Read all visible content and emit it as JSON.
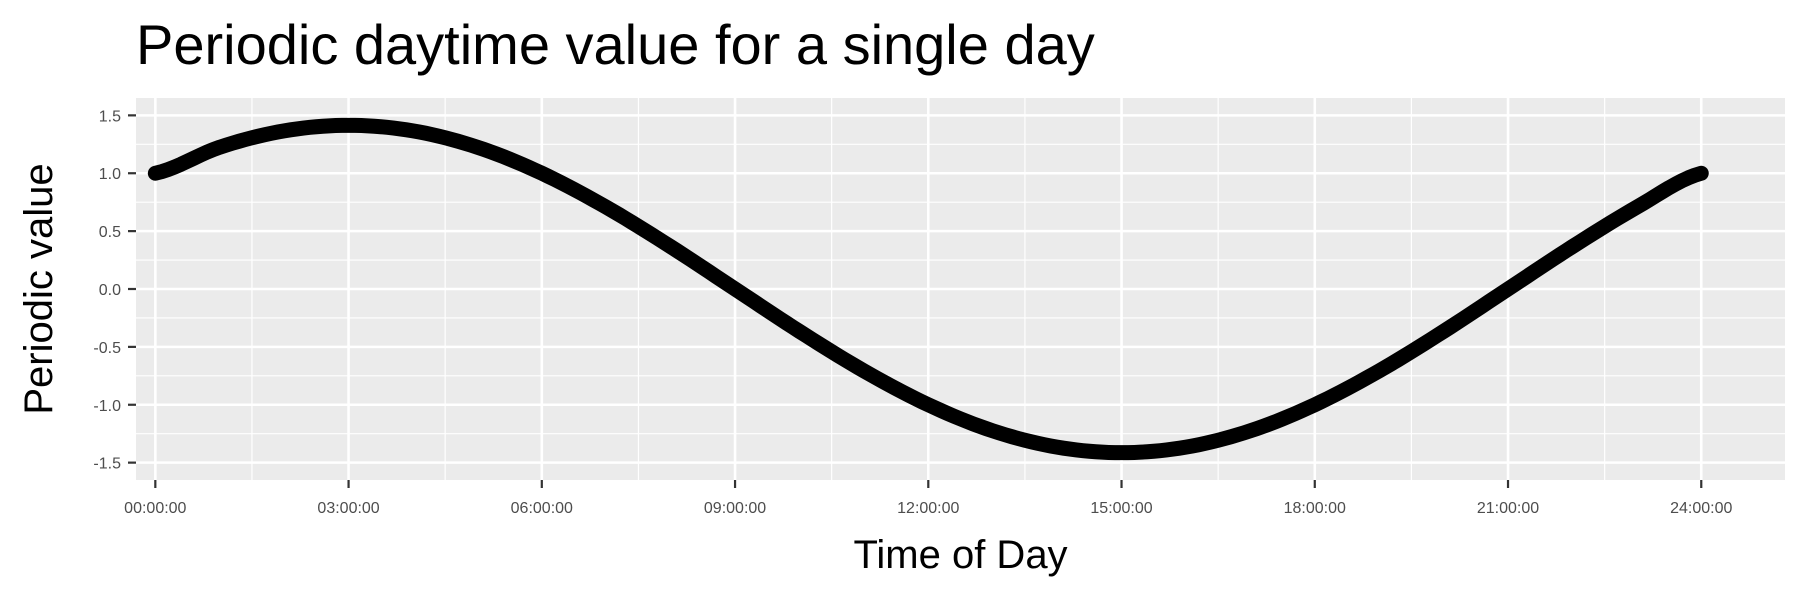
{
  "chart_data": {
    "type": "line",
    "title": "Periodic daytime value for a single day",
    "xlabel": "Time of Day",
    "ylabel": "Periodic value",
    "x_unit": "hours",
    "xlim": [
      -0.3,
      25.3
    ],
    "ylim": [
      -1.5,
      1.5
    ],
    "grid": true,
    "x_ticks": [
      {
        "value": 0,
        "label": "00:00:00"
      },
      {
        "value": 3,
        "label": "03:00:00"
      },
      {
        "value": 6,
        "label": "06:00:00"
      },
      {
        "value": 9,
        "label": "09:00:00"
      },
      {
        "value": 12,
        "label": "12:00:00"
      },
      {
        "value": 15,
        "label": "15:00:00"
      },
      {
        "value": 18,
        "label": "18:00:00"
      },
      {
        "value": 21,
        "label": "21:00:00"
      },
      {
        "value": 24,
        "label": "24:00:00"
      }
    ],
    "y_ticks": [
      {
        "value": 1.5,
        "label": "1.5"
      },
      {
        "value": 1.0,
        "label": "1.0"
      },
      {
        "value": 0.5,
        "label": "0.5"
      },
      {
        "value": 0.0,
        "label": "0.0"
      },
      {
        "value": -0.5,
        "label": "-0.5"
      },
      {
        "value": -1.0,
        "label": "-1.0"
      },
      {
        "value": -1.5,
        "label": "-1.5"
      }
    ],
    "series": [
      {
        "color": "#000000",
        "x": [
          0,
          1,
          2,
          3,
          4,
          5,
          6,
          7,
          8,
          9,
          10,
          11,
          12,
          13,
          14,
          15,
          16,
          17,
          18,
          19,
          20,
          21,
          22,
          23,
          24
        ],
        "y": [
          1.0,
          1.225,
          1.366,
          1.414,
          1.366,
          1.225,
          1.0,
          0.707,
          0.366,
          0.0,
          -0.366,
          -0.707,
          -1.0,
          -1.225,
          -1.366,
          -1.414,
          -1.366,
          -1.225,
          -1.0,
          -0.707,
          -0.366,
          0.0,
          0.366,
          0.707,
          1.0
        ]
      }
    ]
  },
  "colors": {
    "panel_background": "#ebebeb",
    "grid": "#ffffff",
    "line": "#000000",
    "tick_text": "#4d4d4d"
  }
}
